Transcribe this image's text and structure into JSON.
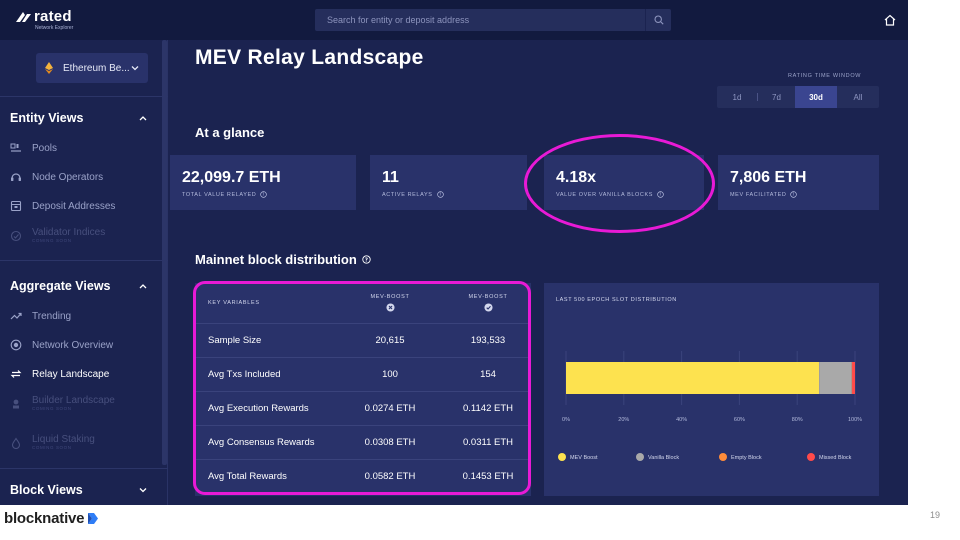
{
  "topbar": {
    "logo_name": "rated",
    "logo_sub": "Network Explorer",
    "search_placeholder": "Search for entity or deposit address"
  },
  "sidebar": {
    "chain": "Ethereum Be...",
    "sections": [
      {
        "title": "Entity Views",
        "items": [
          {
            "label": "Pools",
            "icon": "pools-icon"
          },
          {
            "label": "Node Operators",
            "icon": "node-operators-icon"
          },
          {
            "label": "Deposit Addresses",
            "icon": "deposit-addresses-icon"
          },
          {
            "label": "Validator Indices",
            "icon": "validator-indices-icon",
            "soon": "COMING SOON"
          }
        ]
      },
      {
        "title": "Aggregate Views",
        "items": [
          {
            "label": "Trending",
            "icon": "trending-icon"
          },
          {
            "label": "Network Overview",
            "icon": "network-overview-icon"
          },
          {
            "label": "Relay Landscape",
            "icon": "relay-landscape-icon"
          },
          {
            "label": "Builder Landscape",
            "icon": "builder-landscape-icon",
            "soon": "COMING SOON"
          },
          {
            "label": "Liquid Staking",
            "icon": "liquid-staking-icon",
            "soon": "COMING SOON"
          }
        ]
      },
      {
        "title": "Block Views"
      }
    ]
  },
  "main": {
    "title": "MEV Relay Landscape",
    "rating_window_label": "RATING TIME WINDOW",
    "rating_options": [
      "1d",
      "7d",
      "30d",
      "All"
    ],
    "rating_selected": "30d",
    "glance_title": "At a glance",
    "cards": [
      {
        "value": "22,099.7 ETH",
        "label": "TOTAL VALUE RELAYED"
      },
      {
        "value": "11",
        "label": "ACTIVE RELAYS"
      },
      {
        "value": "4.18x",
        "label": "VALUE OVER VANILLA BLOCKS"
      },
      {
        "value": "7,806 ETH",
        "label": "MEV FACILITATED"
      }
    ],
    "distribution_title": "Mainnet block distribution"
  },
  "table": {
    "header": [
      "KEY VARIABLES",
      "MEV-BOOST",
      "MEV-BOOST"
    ],
    "rows": [
      [
        "Sample Size",
        "20,615",
        "193,533"
      ],
      [
        "Avg Txs Included",
        "100",
        "154"
      ],
      [
        "Avg Execution Rewards",
        "0.0274 ETH",
        "0.1142 ETH"
      ],
      [
        "Avg Consensus Rewards",
        "0.0308 ETH",
        "0.0311 ETH"
      ],
      [
        "Avg Total Rewards",
        "0.0582 ETH",
        "0.1453 ETH"
      ]
    ]
  },
  "chart_data": {
    "type": "bar",
    "orientation": "horizontal-stacked-100",
    "title": "LAST 500 EPOCH SLOT DISTRIBUTION",
    "x_ticks": [
      "0%",
      "20%",
      "40%",
      "60%",
      "80%",
      "100%"
    ],
    "xlim": [
      0,
      100
    ],
    "grid": true,
    "legend_position": "bottom",
    "series": [
      {
        "name": "MEV Boost",
        "value": 87.6,
        "color": "#fde24f"
      },
      {
        "name": "Vanilla Block",
        "value": 11.3,
        "color": "#a9a9a9"
      },
      {
        "name": "Empty Block",
        "value": 0.1,
        "color": "#ff8c3a"
      },
      {
        "name": "Missed Block",
        "value": 1.0,
        "color": "#ff4a4a"
      }
    ]
  },
  "footer": {
    "brand": "blocknative",
    "page_number": "19"
  },
  "colors": {
    "background": "#1b2350",
    "card": "#29326a",
    "highlight": "#e81ad6"
  }
}
